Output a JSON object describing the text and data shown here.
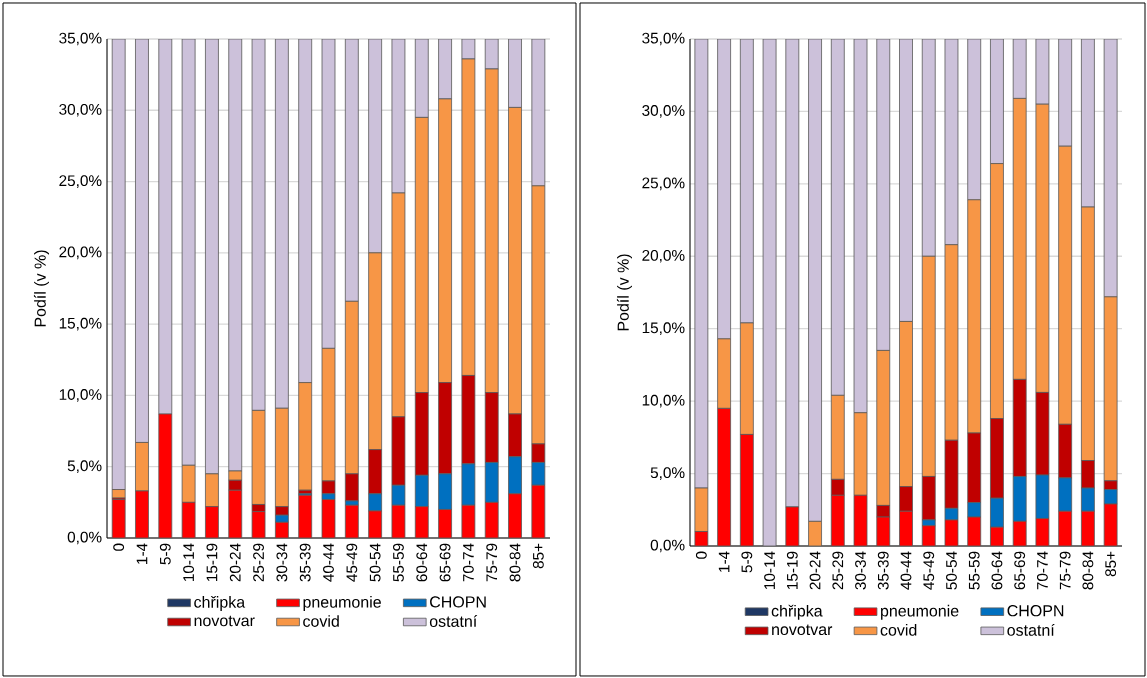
{
  "chart_data": [
    {
      "type": "bar",
      "stacked": true,
      "ylabel": "Podíl (v %)",
      "grid": "y",
      "legend": "bottom",
      "categories": [
        "0",
        "1-4",
        "5-9",
        "10-14",
        "15-19",
        "20-24",
        "25-29",
        "30-34",
        "35-39",
        "40-44",
        "45-49",
        "50-54",
        "55-59",
        "60-64",
        "65-69",
        "70-74",
        "75-79",
        "80-84",
        "85+"
      ],
      "ylim": [
        0,
        35
      ],
      "yticks": [
        {
          "value": 0,
          "label": "0,0%"
        },
        {
          "value": 5,
          "label": "5,0%"
        },
        {
          "value": 10,
          "label": "10,0%"
        },
        {
          "value": 15,
          "label": "15,0%"
        },
        {
          "value": 20,
          "label": "20,0%"
        },
        {
          "value": 25,
          "label": "25,0%"
        },
        {
          "value": 30,
          "label": "30,0%"
        },
        {
          "value": 35,
          "label": "35,0%"
        }
      ],
      "series": [
        {
          "name": "chřipka",
          "color": "#1f3864",
          "values": [
            0,
            0,
            0,
            0,
            0,
            0,
            0,
            0,
            0,
            0,
            0,
            0,
            0,
            0,
            0,
            0,
            0,
            0,
            0
          ]
        },
        {
          "name": "pneumonie",
          "color": "#ff0000",
          "values": [
            2.7,
            3.3,
            8.7,
            2.5,
            2.2,
            3.35,
            1.85,
            1.1,
            3.0,
            2.7,
            2.3,
            1.9,
            2.3,
            2.2,
            2.0,
            2.3,
            2.5,
            3.1,
            3.7
          ]
        },
        {
          "name": "CHOPN",
          "color": "#0070c0",
          "values": [
            0,
            0,
            0,
            0,
            0,
            0,
            0,
            0.5,
            0.1,
            0.4,
            0.3,
            1.2,
            1.4,
            2.2,
            2.5,
            2.9,
            2.8,
            2.6,
            1.6
          ]
        },
        {
          "name": "novotvar",
          "color": "#c00000",
          "values": [
            0.1,
            0,
            0,
            0,
            0,
            0.7,
            0.5,
            0.6,
            0.25,
            0.9,
            1.9,
            3.1,
            4.8,
            5.8,
            6.4,
            6.2,
            4.9,
            3.0,
            1.3
          ]
        },
        {
          "name": "covid",
          "color": "#f79646",
          "values": [
            0.6,
            3.4,
            0,
            2.6,
            2.3,
            0.65,
            6.6,
            6.9,
            7.55,
            9.3,
            12.1,
            13.8,
            15.7,
            19.3,
            19.9,
            22.2,
            22.7,
            21.5,
            18.1
          ]
        },
        {
          "name": "ostatní",
          "color": "#ccc1da",
          "values": [
            31.6,
            28.3,
            26.3,
            29.9,
            30.5,
            30.3,
            26.05,
            25.9,
            24.1,
            21.7,
            18.4,
            15.0,
            10.8,
            5.5,
            4.2,
            1.4,
            2.1,
            4.8,
            10.3
          ]
        }
      ]
    },
    {
      "type": "bar",
      "stacked": true,
      "ylabel": "Podíl (v %)",
      "grid": "y",
      "legend": "bottom",
      "categories": [
        "0",
        "1-4",
        "5-9",
        "10-14",
        "15-19",
        "20-24",
        "25-29",
        "30-34",
        "35-39",
        "40-44",
        "45-49",
        "50-54",
        "55-59",
        "60-64",
        "65-69",
        "70-74",
        "75-79",
        "80-84",
        "85+"
      ],
      "ylim": [
        0,
        35
      ],
      "yticks": [
        {
          "value": 0,
          "label": "0,0%"
        },
        {
          "value": 5,
          "label": "5,0%"
        },
        {
          "value": 10,
          "label": "10,0%"
        },
        {
          "value": 15,
          "label": "15,0%"
        },
        {
          "value": 20,
          "label": "20,0%"
        },
        {
          "value": 25,
          "label": "25,0%"
        },
        {
          "value": 30,
          "label": "30,0%"
        },
        {
          "value": 35,
          "label": "35,0%"
        }
      ],
      "series": [
        {
          "name": "chřipka",
          "color": "#1f3864",
          "values": [
            0,
            0,
            0,
            0,
            0,
            0,
            0,
            0,
            0,
            0,
            0,
            0,
            0,
            0,
            0,
            0,
            0,
            0,
            0
          ]
        },
        {
          "name": "pneumonie",
          "color": "#ff0000",
          "values": [
            1.0,
            9.5,
            7.7,
            0,
            2.7,
            0,
            3.5,
            3.5,
            2.0,
            2.4,
            1.4,
            1.8,
            2.0,
            1.3,
            1.7,
            1.9,
            2.4,
            2.4,
            2.9
          ]
        },
        {
          "name": "CHOPN",
          "color": "#0070c0",
          "values": [
            0,
            0,
            0,
            0,
            0,
            0,
            0,
            0,
            0,
            0,
            0.4,
            0.8,
            1.0,
            2.0,
            3.1,
            3.0,
            2.3,
            1.6,
            1.0
          ]
        },
        {
          "name": "novotvar",
          "color": "#c00000",
          "values": [
            0,
            0,
            0,
            0,
            0,
            0,
            1.1,
            0,
            0.8,
            1.7,
            3.0,
            4.7,
            4.8,
            5.5,
            6.7,
            5.7,
            3.7,
            1.9,
            0.6
          ]
        },
        {
          "name": "covid",
          "color": "#f79646",
          "values": [
            3.0,
            4.8,
            7.7,
            0,
            0,
            1.7,
            5.8,
            5.7,
            10.7,
            11.4,
            15.2,
            13.5,
            16.1,
            17.6,
            19.4,
            19.9,
            19.2,
            17.5,
            12.7
          ]
        },
        {
          "name": "ostatní",
          "color": "#ccc1da",
          "values": [
            31.0,
            20.7,
            19.6,
            35,
            32.3,
            33.3,
            24.6,
            25.8,
            21.5,
            19.5,
            15.0,
            14.2,
            11.1,
            8.6,
            4.1,
            4.5,
            7.4,
            11.6,
            17.8
          ]
        }
      ]
    }
  ]
}
